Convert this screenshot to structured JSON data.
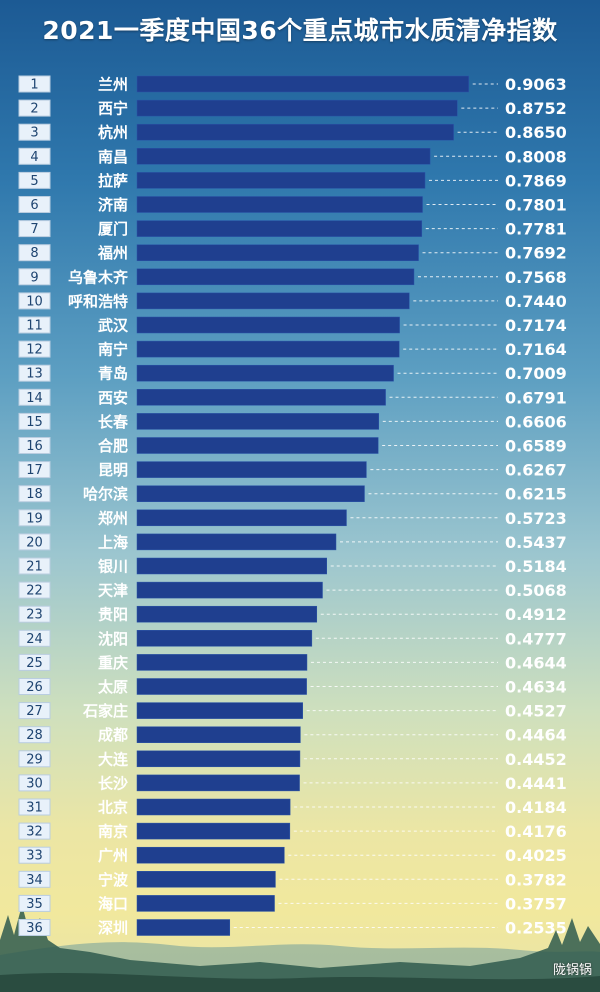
{
  "title": "2021一季度中国36个重点城市水质清净指数",
  "watermark": "陇锅锅",
  "chart_data": {
    "type": "bar",
    "orientation": "horizontal",
    "title": "2021一季度中国36个重点城市水质清净指数",
    "ranks": [
      "1",
      "2",
      "3",
      "4",
      "5",
      "6",
      "7",
      "8",
      "9",
      "10",
      "11",
      "12",
      "13",
      "14",
      "15",
      "16",
      "17",
      "18",
      "19",
      "20",
      "21",
      "22",
      "23",
      "24",
      "25",
      "26",
      "27",
      "28",
      "29",
      "30",
      "31",
      "32",
      "33",
      "34",
      "35",
      "36"
    ],
    "categories": [
      "兰州",
      "西宁",
      "杭州",
      "南昌",
      "拉萨",
      "济南",
      "厦门",
      "福州",
      "乌鲁木齐",
      "呼和浩特",
      "武汉",
      "南宁",
      "青岛",
      "西安",
      "长春",
      "合肥",
      "昆明",
      "哈尔滨",
      "郑州",
      "上海",
      "银川",
      "天津",
      "贵阳",
      "沈阳",
      "重庆",
      "太原",
      "石家庄",
      "成都",
      "大连",
      "长沙",
      "北京",
      "南京",
      "广州",
      "宁波",
      "海口",
      "深圳"
    ],
    "values": [
      0.9063,
      0.8752,
      0.865,
      0.8008,
      0.7869,
      0.7801,
      0.7781,
      0.7692,
      0.7568,
      0.744,
      0.7174,
      0.7164,
      0.7009,
      0.6791,
      0.6606,
      0.6589,
      0.6267,
      0.6215,
      0.5723,
      0.5437,
      0.5184,
      0.5068,
      0.4912,
      0.4777,
      0.4644,
      0.4634,
      0.4527,
      0.4464,
      0.4452,
      0.4441,
      0.4184,
      0.4176,
      0.4025,
      0.3782,
      0.3757,
      0.2535
    ],
    "value_labels": [
      "0.9063",
      "0.8752",
      "0.8650",
      "0.8008",
      "0.7869",
      "0.7801",
      "0.7781",
      "0.7692",
      "0.7568",
      "0.7440",
      "0.7174",
      "0.7164",
      "0.7009",
      "0.6791",
      "0.6606",
      "0.6589",
      "0.6267",
      "0.6215",
      "0.5723",
      "0.5437",
      "0.5184",
      "0.5068",
      "0.4912",
      "0.4777",
      "0.4644",
      "0.4634",
      "0.4527",
      "0.4464",
      "0.4452",
      "0.4441",
      "0.4184",
      "0.4176",
      "0.4025",
      "0.3782",
      "0.3757",
      "0.2535"
    ],
    "bar_color": "#1f3f8f",
    "grid": false,
    "legend": "none"
  }
}
